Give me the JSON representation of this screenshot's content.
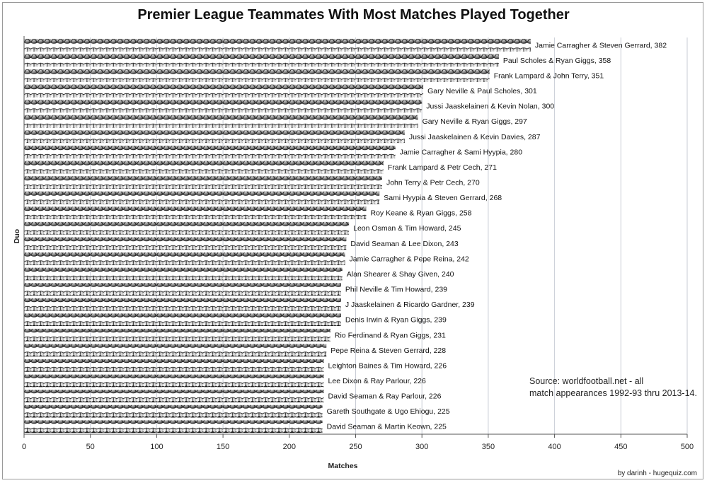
{
  "chart_data": {
    "type": "bar",
    "orientation": "horizontal",
    "title": "Premier League Teammates With Most Matches Played Together",
    "xlabel": "Matches",
    "ylabel": "Duo",
    "xlim": [
      0,
      500
    ],
    "xticks": [
      "0",
      "50",
      "100",
      "150",
      "200",
      "250",
      "300",
      "350",
      "400",
      "450",
      "500"
    ],
    "grid": "vertical",
    "bar_style": "stacked football icons",
    "categories": [
      "Jamie Carragher & Steven Gerrard",
      "Paul Scholes & Ryan Giggs",
      "Frank Lampard & John Terry",
      "Gary Neville & Paul Scholes",
      "Jussi Jaaskelainen & Kevin Nolan",
      "Gary Neville & Ryan Giggs",
      "Jussi Jaaskelainen & Kevin Davies",
      "Jamie Carragher & Sami Hyypia",
      "Frank Lampard & Petr Cech",
      "John Terry & Petr Cech",
      "Sami Hyypia & Steven Gerrard",
      "Roy Keane & Ryan Giggs",
      "Leon Osman & Tim Howard",
      "David Seaman & Lee Dixon",
      "Jamie Carragher & Pepe Reina",
      "Alan Shearer & Shay Given",
      "Phil Neville & Tim Howard",
      "J Jaaskelainen & Ricardo Gardner",
      "Denis Irwin & Ryan Giggs",
      "Rio Ferdinand & Ryan Giggs",
      "Pepe Reina & Steven Gerrard",
      "Leighton Baines & Tim Howard",
      "Lee Dixon & Ray Parlour",
      "David Seaman & Ray Parlour",
      "Gareth Southgate & Ugo Ehiogu",
      "David Seaman & Martin Keown"
    ],
    "values": [
      382,
      358,
      351,
      301,
      300,
      297,
      287,
      280,
      271,
      270,
      268,
      258,
      245,
      243,
      242,
      240,
      239,
      239,
      239,
      231,
      228,
      226,
      226,
      226,
      225,
      225
    ],
    "bar_labels": [
      "Jamie Carragher & Steven Gerrard, 382",
      "Paul Scholes & Ryan Giggs, 358",
      "Frank Lampard & John Terry, 351",
      "Gary Neville & Paul Scholes, 301",
      "Jussi Jaaskelainen & Kevin Nolan, 300",
      "Gary Neville & Ryan Giggs, 297",
      "Jussi Jaaskelainen & Kevin Davies, 287",
      "Jamie Carragher & Sami Hyypia, 280",
      "Frank Lampard & Petr Cech, 271",
      "John Terry & Petr Cech, 270",
      "Sami Hyypia & Steven Gerrard, 268",
      "Roy Keane & Ryan Giggs, 258",
      "Leon Osman & Tim Howard, 245",
      "David Seaman & Lee Dixon, 243",
      "Jamie Carragher & Pepe Reina, 242",
      "Alan Shearer & Shay Given, 240",
      "Phil Neville & Tim Howard, 239",
      "J Jaaskelainen & Ricardo Gardner, 239",
      "Denis Irwin & Ryan Giggs, 239",
      "Rio Ferdinand & Ryan Giggs, 231",
      "Pepe Reina & Steven Gerrard, 228",
      "Leighton Baines & Tim Howard, 226",
      "Lee Dixon & Ray Parlour, 226",
      "David Seaman & Ray Parlour, 226",
      "Gareth Southgate & Ugo Ehiogu, 225",
      "David Seaman & Martin Keown, 225"
    ],
    "annotations": [
      "Source: worldfootball.net - all\nmatch appearances 1992-93 thru 2013-14."
    ],
    "credit": "by darinh - hugequiz.com",
    "colors": {
      "gridline": "#c9cdd6",
      "axis": "#555555",
      "ball_light": "#f4f4f4",
      "ball_mid": "#a9a9a9",
      "ball_dark": "#2e2e2e"
    }
  }
}
